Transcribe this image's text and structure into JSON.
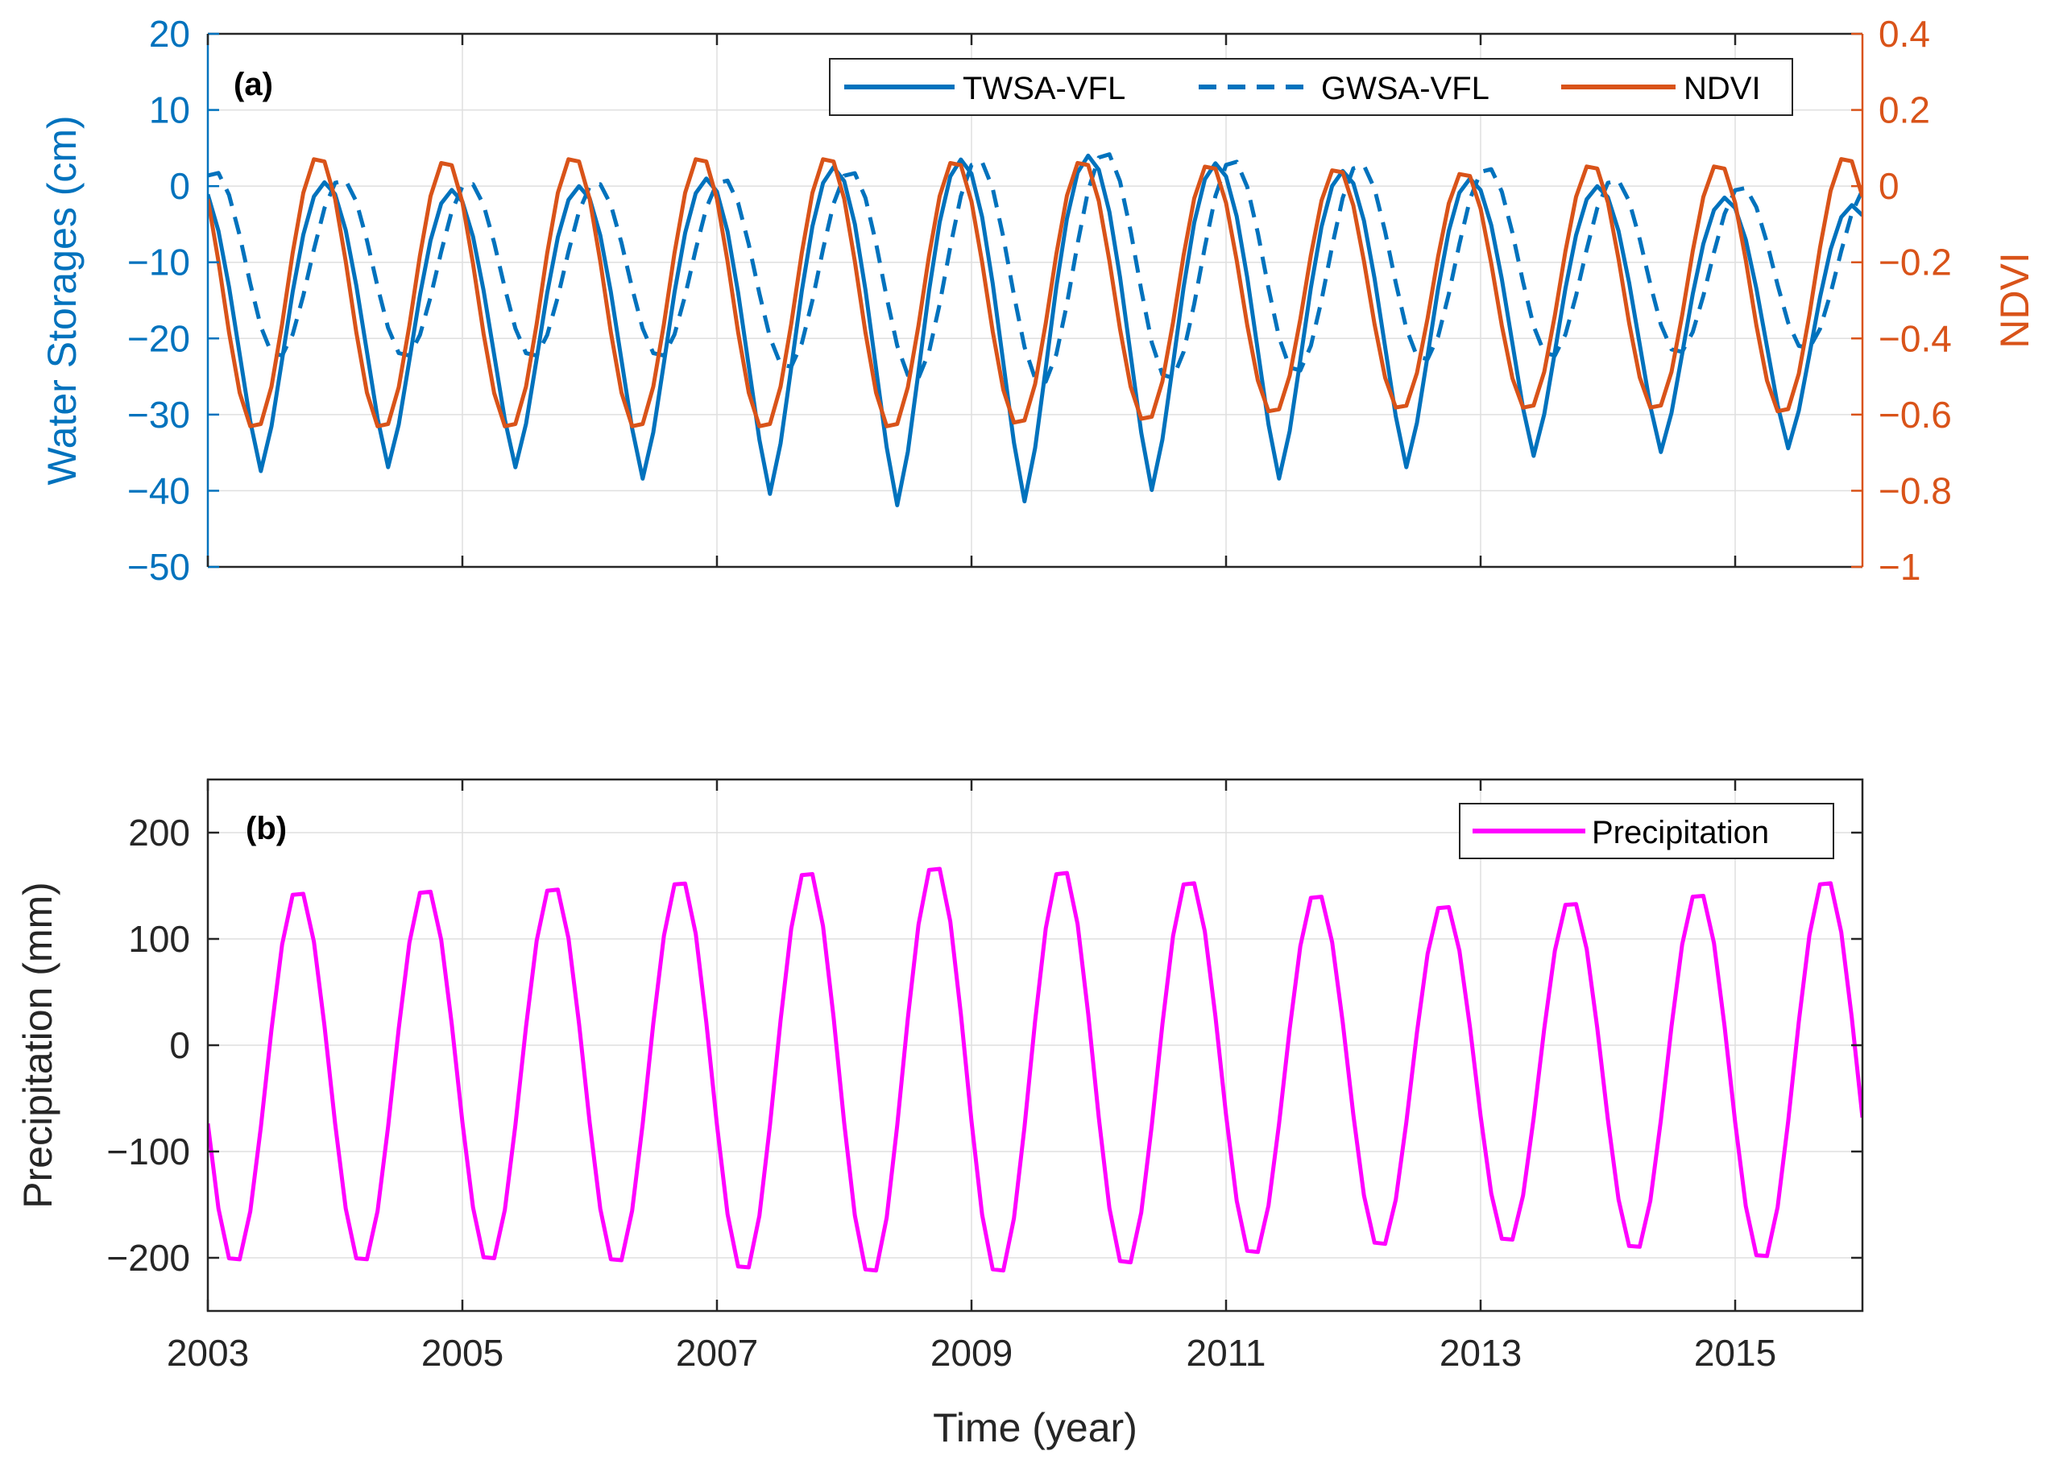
{
  "colors": {
    "blue": "#0072BD",
    "orange": "#D95319",
    "magenta": "#FF00FF",
    "axis_dark": "#262626",
    "grid": "#dfdfdf"
  },
  "chart_data": [
    {
      "id": "panel-a",
      "type": "line",
      "panel_label": "(a)",
      "xlabel": "",
      "ylabel": "Water Storages (cm)",
      "ylabel_right": "NDVI",
      "xlim": [
        2003,
        2016
      ],
      "ylim": [
        -50,
        20
      ],
      "ylim_right": [
        -1,
        0.4
      ],
      "yticks": [
        20,
        10,
        0,
        -10,
        -20,
        -30,
        -40,
        -50
      ],
      "ytick_labels": [
        "20",
        "10",
        "0",
        "−10",
        "−20",
        "−30",
        "−40",
        "−50"
      ],
      "yticks_right": [
        0.4,
        0.2,
        0,
        -0.2,
        -0.4,
        -0.6,
        -0.8,
        -1
      ],
      "ytick_labels_right": [
        "0.4",
        "0.2",
        "0",
        "−0.2",
        "−0.4",
        "−0.6",
        "−0.8",
        "−1"
      ],
      "xticks": [
        2003,
        2005,
        2007,
        2009,
        2011,
        2013,
        2015
      ],
      "grid": true,
      "legend_position": "top-right",
      "legend": [
        "TWSA-VFL",
        "GWSA-VFL",
        "NDVI"
      ],
      "series": [
        {
          "name": "TWSA-VFL",
          "axis": "left",
          "style": "solid",
          "color": "#0072BD",
          "period": 1,
          "phase": 0.92,
          "shape": 1.5,
          "peak_x": [
            2003.92,
            2004.92,
            2005.92,
            2006.92,
            2007.92,
            2008.92,
            2009.92,
            2010.92,
            2011.92,
            2012.92,
            2013.92,
            2014.92,
            2015.92
          ],
          "peaks": [
            0.5,
            -0.5,
            0.0,
            1.0,
            2.5,
            3.5,
            4.0,
            3.0,
            2.0,
            1.0,
            0.0,
            -1.5,
            -2.5
          ],
          "trough_x": [
            2003.42,
            2004.42,
            2005.42,
            2006.42,
            2007.42,
            2008.42,
            2009.42,
            2010.42,
            2011.42,
            2012.42,
            2013.42,
            2014.42,
            2015.42
          ],
          "troughs": [
            -37.5,
            -37.0,
            -37.0,
            -38.5,
            -40.5,
            -42.0,
            -41.5,
            -40.0,
            -38.5,
            -37.0,
            -35.5,
            -35.0,
            -34.5
          ]
        },
        {
          "name": "GWSA-VFL",
          "axis": "left",
          "style": "dashed",
          "color": "#0072BD",
          "period": 1,
          "phase": 0.05,
          "shape": 1.0,
          "peak_x": [
            2003.05,
            2004.05,
            2005.05,
            2006.05,
            2007.05,
            2008.05,
            2009.05,
            2010.05,
            2011.05,
            2012.05,
            2013.05,
            2014.05,
            2015.05
          ],
          "peaks": [
            2.0,
            1.0,
            0.5,
            0.5,
            1.0,
            2.0,
            3.5,
            4.5,
            3.5,
            3.0,
            2.5,
            1.0,
            0.0
          ],
          "trough_x": [
            2003.55,
            2004.55,
            2005.55,
            2006.55,
            2007.55,
            2008.55,
            2009.55,
            2010.55,
            2011.55,
            2012.55,
            2013.55,
            2014.55,
            2015.55
          ],
          "troughs": [
            -22.5,
            -22.5,
            -22.5,
            -22.5,
            -24.0,
            -25.5,
            -26.0,
            -25.5,
            -24.5,
            -23.0,
            -22.5,
            -22.0,
            -21.5
          ]
        },
        {
          "name": "NDVI",
          "axis": "right",
          "style": "solid",
          "color": "#D95319",
          "period": 1,
          "phase": 0.87,
          "shape": 1.0,
          "peak_x": [
            2003.87,
            2004.87,
            2005.87,
            2006.87,
            2007.87,
            2008.87,
            2009.87,
            2010.87,
            2011.87,
            2012.87,
            2013.87,
            2014.87,
            2015.87
          ],
          "peaks": [
            0.08,
            0.07,
            0.08,
            0.08,
            0.08,
            0.07,
            0.07,
            0.06,
            0.05,
            0.04,
            0.06,
            0.06,
            0.08
          ],
          "trough_x": [
            2003.37,
            2004.37,
            2005.37,
            2006.37,
            2007.37,
            2008.37,
            2009.37,
            2010.37,
            2011.37,
            2012.37,
            2013.37,
            2014.37,
            2015.37
          ],
          "troughs": [
            -0.64,
            -0.64,
            -0.64,
            -0.64,
            -0.64,
            -0.64,
            -0.63,
            -0.62,
            -0.6,
            -0.59,
            -0.59,
            -0.59,
            -0.6
          ]
        }
      ]
    },
    {
      "id": "panel-b",
      "type": "line",
      "panel_label": "(b)",
      "xlabel": "Time (year)",
      "ylabel": "Precipitation (mm)",
      "xlim": [
        2003,
        2016
      ],
      "ylim": [
        -250,
        250
      ],
      "yticks": [
        200,
        100,
        0,
        -100,
        -200
      ],
      "ytick_labels": [
        "200",
        "100",
        "0",
        "−100",
        "−200"
      ],
      "xticks": [
        2003,
        2005,
        2007,
        2009,
        2011,
        2013,
        2015
      ],
      "xtick_labels": [
        "2003",
        "2005",
        "2007",
        "2009",
        "2011",
        "2013",
        "2015"
      ],
      "grid": true,
      "legend_position": "top-right",
      "legend": [
        "Precipitation"
      ],
      "series": [
        {
          "name": "Precipitation",
          "axis": "left",
          "style": "solid",
          "color": "#FF00FF",
          "period": 1,
          "phase": 0.71,
          "shape": 1.0,
          "peak_x": [
            2003.71,
            2004.71,
            2005.71,
            2006.71,
            2007.71,
            2008.71,
            2009.71,
            2010.71,
            2011.71,
            2012.71,
            2013.71,
            2014.71,
            2015.71
          ],
          "peaks": [
            148,
            150,
            152,
            158,
            167,
            172,
            168,
            158,
            145,
            135,
            138,
            146,
            158
          ],
          "trough_x": [
            2003.21,
            2004.21,
            2005.21,
            2006.21,
            2007.21,
            2008.21,
            2009.21,
            2010.21,
            2011.21,
            2012.21,
            2013.21,
            2014.21,
            2015.21
          ],
          "troughs": [
            -207,
            -207,
            -206,
            -208,
            -215,
            -218,
            -218,
            -210,
            -200,
            -192,
            -188,
            -195,
            -204
          ]
        }
      ]
    }
  ]
}
